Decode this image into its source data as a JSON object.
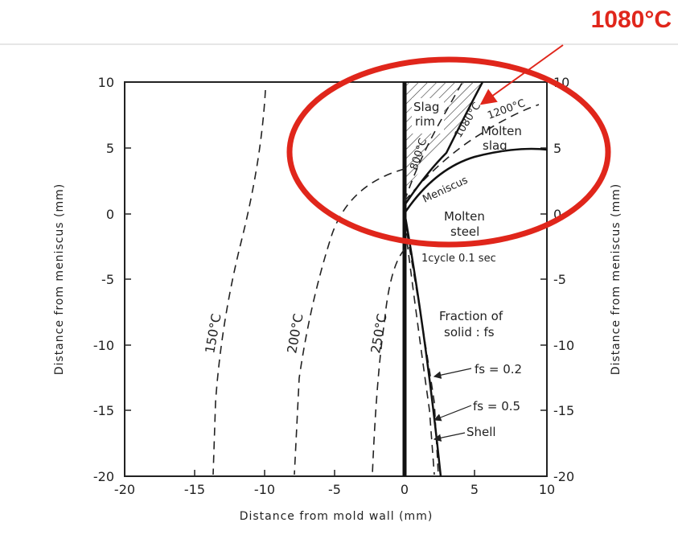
{
  "header": {
    "callout": "1080°C",
    "callout_color": "#e0261b"
  },
  "axes": {
    "x_title": "Distance from mold wall   (mm)",
    "y_title_left": "Distance from meniscus (mm)",
    "y_title_right": "Distance from meniscus (mm)",
    "x_ticks": [
      "-20",
      "-15",
      "-10",
      "-5",
      "0",
      "5",
      "10"
    ],
    "y_ticks_left": [
      "10",
      "5",
      "0",
      "-5",
      "-10",
      "-15",
      "-20"
    ],
    "y_ticks_right": [
      "10",
      "5",
      "0",
      "-5",
      "-10",
      "-15",
      "-20"
    ]
  },
  "isotherms": {
    "t150": "150°C",
    "t200": "200°C",
    "t250": "250°C",
    "t800": "800°C",
    "t1080": "1080°C",
    "t1200": "1200°C"
  },
  "regions": {
    "slag_rim_1": "Slag",
    "slag_rim_2": "rim",
    "molten_slag_1": "Molten",
    "molten_slag_2": "slag",
    "meniscus": "Meniscus",
    "molten_steel_1": "Molten",
    "molten_steel_2": "steel",
    "cycle": "1cycle  0.1 sec",
    "fraction_1": "Fraction of",
    "fraction_2": "solid : fs",
    "fs02": "fs = 0.2",
    "fs05": "fs = 0.5",
    "shell": "Shell"
  },
  "colors": {
    "highlight": "#e0261b",
    "ink": "#222222"
  }
}
